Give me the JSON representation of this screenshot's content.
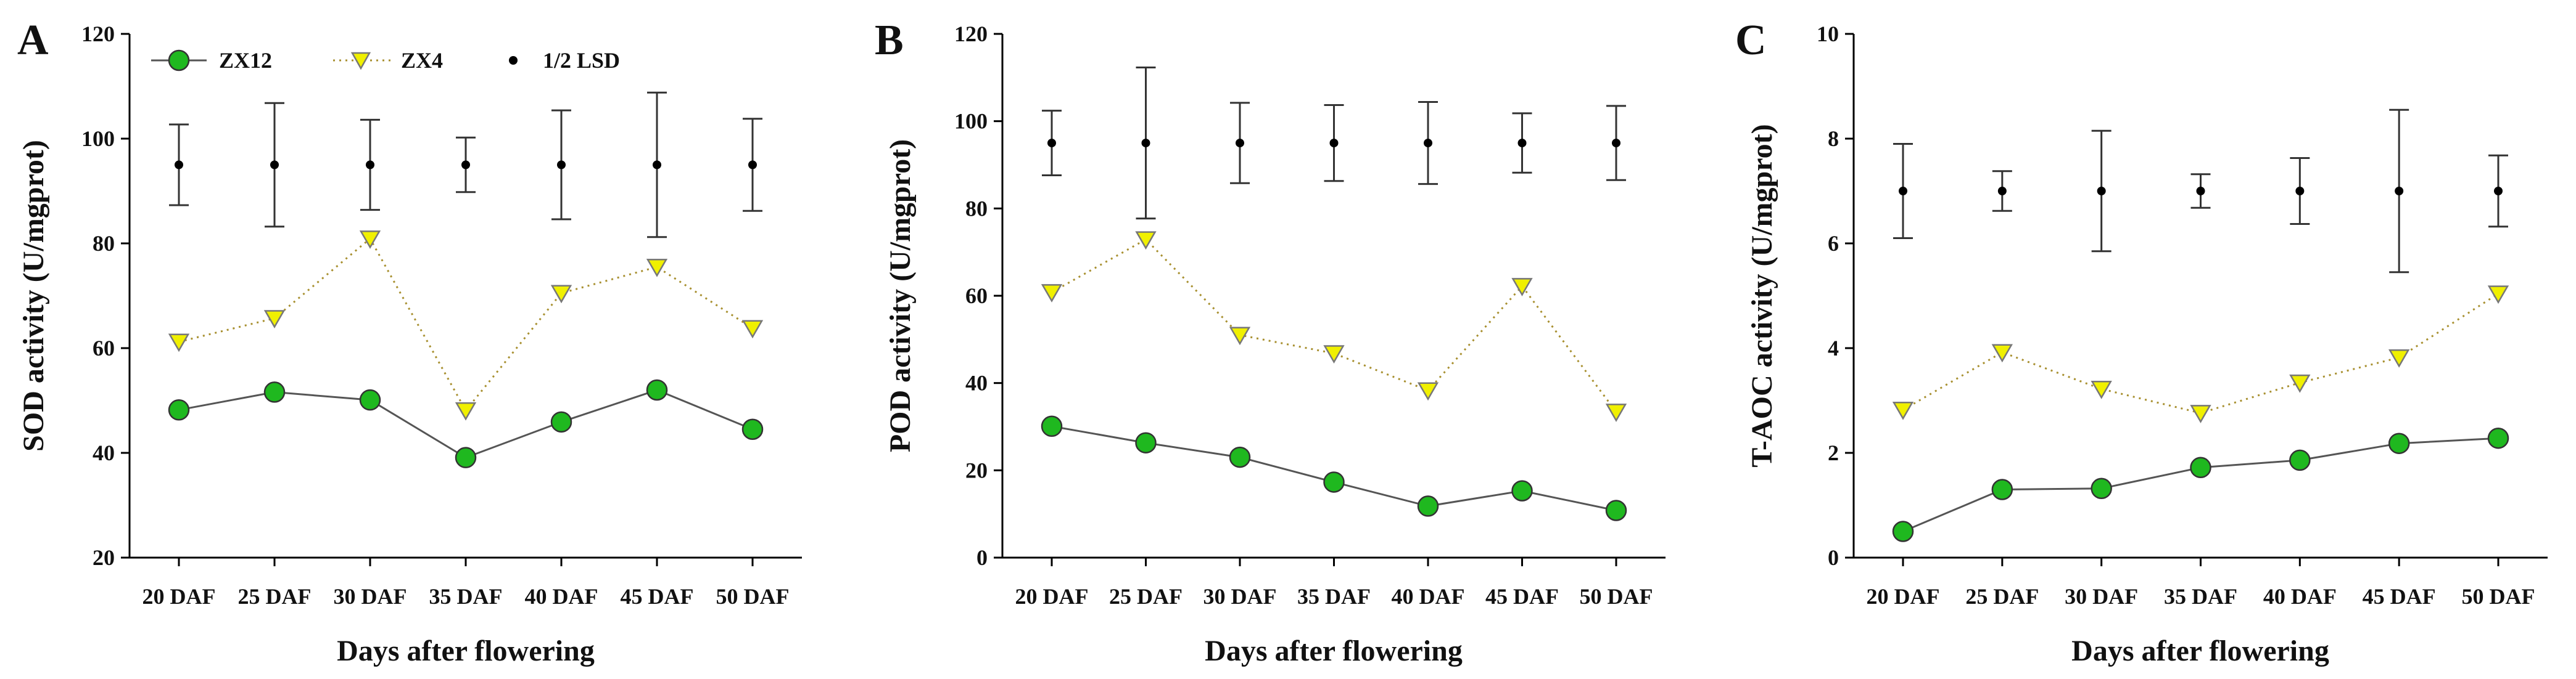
{
  "figure": {
    "legend": [
      {
        "name": "ZX12",
        "marker": "circle"
      },
      {
        "name": "ZX4",
        "marker": "triangle-down"
      },
      {
        "name": "1/2 LSD",
        "marker": "dot"
      }
    ],
    "colors": {
      "zx12_fill": "#1fb81f",
      "zx12_line": "#555555",
      "zx4_fill": "#f0f000",
      "zx4_line": "#a89030",
      "lsd": "#000000"
    }
  },
  "chart_data": [
    {
      "type": "line",
      "panel": "A",
      "categories": [
        "20 DAF",
        "25 DAF",
        "30 DAF",
        "35 DAF",
        "40 DAF",
        "45 DAF",
        "50 DAF"
      ],
      "xlabel": "Days after flowering",
      "ylabel": "SOD activity (U/mgprot)",
      "ylim": [
        20,
        120
      ],
      "yticks": [
        20,
        40,
        60,
        80,
        100,
        120
      ],
      "series": [
        {
          "name": "ZX12",
          "values": [
            48.2,
            51.6,
            50.1,
            39.1,
            45.9,
            52.0,
            44.5
          ]
        },
        {
          "name": "ZX4",
          "values": [
            61.2,
            65.7,
            80.9,
            48.1,
            70.5,
            75.5,
            63.8
          ]
        }
      ],
      "lsd": {
        "name": "1/2 LSD",
        "center": [
          95,
          95,
          95,
          95,
          95,
          95,
          95
        ],
        "half": [
          7.7,
          11.8,
          8.6,
          5.2,
          10.4,
          13.8,
          8.8
        ]
      }
    },
    {
      "type": "line",
      "panel": "B",
      "categories": [
        "20 DAF",
        "25 DAF",
        "30 DAF",
        "35 DAF",
        "40 DAF",
        "45 DAF",
        "50 DAF"
      ],
      "xlabel": "Days after flowering",
      "ylabel": "POD activity (U/mgprot)",
      "ylim": [
        0,
        120
      ],
      "yticks": [
        0,
        20,
        40,
        60,
        80,
        100,
        120
      ],
      "series": [
        {
          "name": "ZX12",
          "values": [
            30.1,
            26.3,
            23.0,
            17.3,
            11.8,
            15.3,
            10.8
          ]
        },
        {
          "name": "ZX4",
          "values": [
            60.8,
            72.9,
            51.0,
            46.8,
            38.3,
            62.2,
            33.4
          ]
        }
      ],
      "lsd": {
        "name": "1/2 LSD",
        "center": [
          95,
          95,
          95,
          95,
          95,
          95,
          95
        ],
        "half": [
          7.4,
          17.3,
          9.2,
          8.7,
          9.4,
          6.8,
          8.5
        ]
      }
    },
    {
      "type": "line",
      "panel": "C",
      "categories": [
        "20 DAF",
        "25 DAF",
        "30 DAF",
        "35 DAF",
        "40 DAF",
        "45 DAF",
        "50 DAF"
      ],
      "xlabel": "Days after flowering",
      "ylabel": "T-AOC activity (U/mgprot)",
      "ylim": [
        0,
        10
      ],
      "yticks": [
        0,
        2,
        4,
        6,
        8,
        10
      ],
      "series": [
        {
          "name": "ZX12",
          "values": [
            0.5,
            1.3,
            1.32,
            1.72,
            1.86,
            2.18,
            2.28
          ]
        },
        {
          "name": "ZX4",
          "values": [
            2.82,
            3.92,
            3.22,
            2.76,
            3.34,
            3.82,
            5.04
          ]
        }
      ],
      "lsd": {
        "name": "1/2 LSD",
        "center": [
          7,
          7,
          7,
          7,
          7,
          7,
          7
        ],
        "half": [
          0.9,
          0.38,
          1.15,
          0.32,
          0.63,
          1.55,
          0.68
        ]
      }
    }
  ]
}
